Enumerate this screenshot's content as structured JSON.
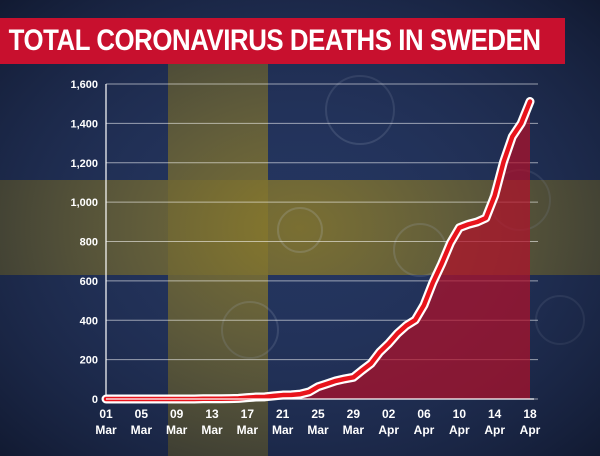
{
  "title": "TOTAL CORONAVIRUS DEATHS IN SWEDEN",
  "colors": {
    "accent": "#c8102e",
    "line": "#e8141c",
    "fill": "#b0102a",
    "flag_blue": "#23345e",
    "flag_yellow": "#8a7a2a"
  },
  "chart_data": {
    "type": "area",
    "xlabel": "",
    "ylabel": "",
    "ylim": [
      0,
      1600
    ],
    "grid": true,
    "yticks": [
      "0",
      "200",
      "400",
      "600",
      "800",
      "1,000",
      "1,200",
      "1,400",
      "1,600"
    ],
    "xticks": [
      {
        "day": "01",
        "month": "Mar"
      },
      {
        "day": "05",
        "month": "Mar"
      },
      {
        "day": "09",
        "month": "Mar"
      },
      {
        "day": "13",
        "month": "Mar"
      },
      {
        "day": "17",
        "month": "Mar"
      },
      {
        "day": "21",
        "month": "Mar"
      },
      {
        "day": "25",
        "month": "Mar"
      },
      {
        "day": "29",
        "month": "Mar"
      },
      {
        "day": "02",
        "month": "Apr"
      },
      {
        "day": "06",
        "month": "Apr"
      },
      {
        "day": "10",
        "month": "Apr"
      },
      {
        "day": "14",
        "month": "Apr"
      },
      {
        "day": "18",
        "month": "Apr"
      }
    ],
    "x": [
      "01 Mar",
      "02 Mar",
      "03 Mar",
      "04 Mar",
      "05 Mar",
      "06 Mar",
      "07 Mar",
      "08 Mar",
      "09 Mar",
      "10 Mar",
      "11 Mar",
      "12 Mar",
      "13 Mar",
      "14 Mar",
      "15 Mar",
      "16 Mar",
      "17 Mar",
      "18 Mar",
      "19 Mar",
      "20 Mar",
      "21 Mar",
      "22 Mar",
      "23 Mar",
      "24 Mar",
      "25 Mar",
      "26 Mar",
      "27 Mar",
      "28 Mar",
      "29 Mar",
      "30 Mar",
      "31 Mar",
      "01 Apr",
      "02 Apr",
      "03 Apr",
      "04 Apr",
      "05 Apr",
      "06 Apr",
      "07 Apr",
      "08 Apr",
      "09 Apr",
      "10 Apr",
      "11 Apr",
      "12 Apr",
      "13 Apr",
      "14 Apr",
      "15 Apr",
      "16 Apr",
      "17 Apr",
      "18 Apr"
    ],
    "series": [
      {
        "values": [
          0,
          0,
          0,
          0,
          0,
          0,
          0,
          0,
          0,
          0,
          0,
          1,
          1,
          1,
          2,
          3,
          7,
          10,
          11,
          16,
          20,
          21,
          25,
          36,
          62,
          77,
          92,
          102,
          110,
          146,
          180,
          239,
          282,
          333,
          373,
          401,
          477,
          591,
          687,
          793,
          870,
          887,
          899,
          919,
          1033,
          1203,
          1333,
          1400,
          1511
        ]
      }
    ]
  }
}
